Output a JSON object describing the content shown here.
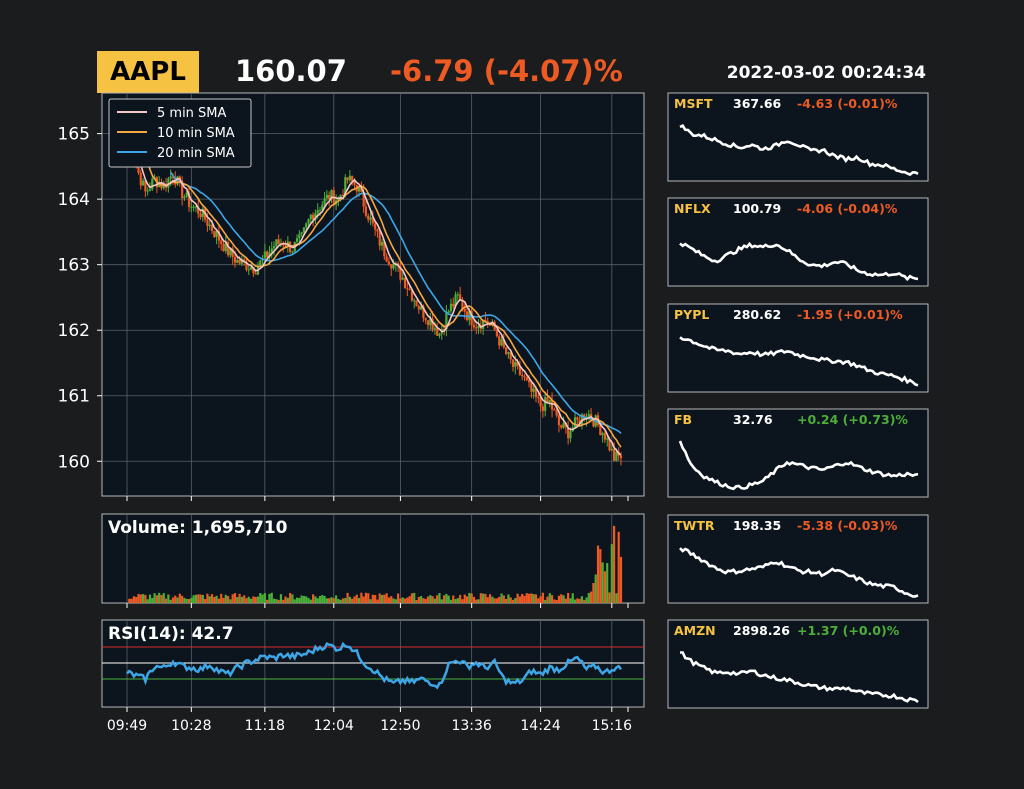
{
  "header": {
    "symbol": "AAPL",
    "price": "160.07",
    "change": "-6.79 (-4.07)%",
    "timestamp": "2022-03-02 00:24:34"
  },
  "colors": {
    "background": "#1a1c1e",
    "panel": "#0c151d",
    "symbol_badge": "#f5c242",
    "up": "#4caf3a",
    "down": "#ee5a24",
    "sma5": "#f7c6c6",
    "sma10": "#f5a742",
    "sma20": "#3ea6e6",
    "rsi_line": "#3ea6e6",
    "rsi_upper": "#d62c2c",
    "rsi_mid": "#ffffff",
    "rsi_lower": "#4caf3a",
    "ticker_symbol": "#f5c242"
  },
  "chart_data": [
    {
      "type": "candlestick",
      "name": "price",
      "legend": [
        "5 min SMA",
        "10 min SMA",
        "20 min SMA"
      ],
      "legend_position": "top-left",
      "grid": true,
      "ylim": [
        159.47,
        165.62
      ],
      "yticks": [
        160,
        161,
        162,
        163,
        164,
        165
      ],
      "x_ticks": [
        "09:49",
        "10:28",
        "11:18",
        "12:04",
        "12:50",
        "13:36",
        "14:24",
        "15:16"
      ],
      "price_path": [
        [
          0,
          165.4
        ],
        [
          4,
          164.5
        ],
        [
          8,
          164.1
        ],
        [
          12,
          164.3
        ],
        [
          16,
          164.2
        ],
        [
          20,
          164.4
        ],
        [
          24,
          164.1
        ],
        [
          28,
          163.9
        ],
        [
          32,
          163.8
        ],
        [
          36,
          163.6
        ],
        [
          40,
          163.4
        ],
        [
          44,
          163.2
        ],
        [
          48,
          163.05
        ],
        [
          52,
          163.0
        ],
        [
          56,
          162.95
        ],
        [
          60,
          163.1
        ],
        [
          64,
          163.3
        ],
        [
          68,
          163.35
        ],
        [
          72,
          163.25
        ],
        [
          76,
          163.4
        ],
        [
          80,
          163.75
        ],
        [
          84,
          163.9
        ],
        [
          88,
          164.05
        ],
        [
          92,
          164.0
        ],
        [
          96,
          164.3
        ],
        [
          100,
          164.2
        ],
        [
          104,
          163.85
        ],
        [
          108,
          163.5
        ],
        [
          112,
          163.2
        ],
        [
          116,
          163.0
        ],
        [
          120,
          162.8
        ],
        [
          124,
          162.55
        ],
        [
          128,
          162.3
        ],
        [
          132,
          162.15
        ],
        [
          136,
          161.95
        ],
        [
          140,
          162.3
        ],
        [
          144,
          162.5
        ],
        [
          148,
          162.25
        ],
        [
          152,
          162.1
        ],
        [
          156,
          162.15
        ],
        [
          160,
          162.0
        ],
        [
          164,
          161.7
        ],
        [
          168,
          161.45
        ],
        [
          172,
          161.3
        ],
        [
          176,
          161.05
        ],
        [
          180,
          160.85
        ],
        [
          184,
          160.9
        ],
        [
          188,
          160.55
        ],
        [
          192,
          160.45
        ],
        [
          196,
          160.6
        ],
        [
          200,
          160.75
        ],
        [
          204,
          160.6
        ],
        [
          208,
          160.4
        ],
        [
          212,
          160.05
        ],
        [
          215,
          160.07
        ]
      ],
      "volume_label": "Volume: 1,695,710",
      "volume_ylim": [
        0,
        30000
      ]
    },
    {
      "type": "line",
      "name": "rsi",
      "label": "RSI(14): 42.7",
      "ylim": [
        0,
        100
      ],
      "reference_lines": [
        70,
        50,
        30
      ],
      "points": [
        [
          0,
          38
        ],
        [
          4,
          34
        ],
        [
          8,
          30
        ],
        [
          12,
          46
        ],
        [
          16,
          44
        ],
        [
          20,
          52
        ],
        [
          24,
          46
        ],
        [
          28,
          44
        ],
        [
          32,
          42
        ],
        [
          36,
          48
        ],
        [
          40,
          40
        ],
        [
          44,
          36
        ],
        [
          48,
          44
        ],
        [
          52,
          50
        ],
        [
          56,
          54
        ],
        [
          60,
          58
        ],
        [
          64,
          56
        ],
        [
          68,
          60
        ],
        [
          72,
          58
        ],
        [
          76,
          60
        ],
        [
          80,
          64
        ],
        [
          84,
          70
        ],
        [
          88,
          72
        ],
        [
          92,
          68
        ],
        [
          96,
          74
        ],
        [
          100,
          62
        ],
        [
          104,
          48
        ],
        [
          108,
          40
        ],
        [
          112,
          30
        ],
        [
          116,
          24
        ],
        [
          120,
          28
        ],
        [
          124,
          26
        ],
        [
          128,
          30
        ],
        [
          132,
          26
        ],
        [
          136,
          22
        ],
        [
          140,
          48
        ],
        [
          144,
          54
        ],
        [
          148,
          46
        ],
        [
          152,
          50
        ],
        [
          156,
          44
        ],
        [
          160,
          50
        ],
        [
          164,
          30
        ],
        [
          168,
          24
        ],
        [
          172,
          28
        ],
        [
          176,
          40
        ],
        [
          180,
          36
        ],
        [
          184,
          44
        ],
        [
          188,
          42
        ],
        [
          192,
          50
        ],
        [
          196,
          56
        ],
        [
          200,
          42
        ],
        [
          204,
          46
        ],
        [
          208,
          38
        ],
        [
          212,
          44
        ],
        [
          215,
          42.7
        ]
      ]
    }
  ],
  "tickers": [
    {
      "symbol": "MSFT",
      "price": "367.66",
      "change": "-4.63 (-0.01)%",
      "direction": "down",
      "trend": [
        1.0,
        0.82,
        0.78,
        0.7,
        0.62,
        0.55,
        0.6,
        0.52,
        0.58,
        0.7,
        0.6,
        0.48,
        0.5,
        0.38,
        0.32,
        0.35,
        0.22,
        0.2,
        0.12,
        0.05,
        0.03
      ]
    },
    {
      "symbol": "NFLX",
      "price": "100.79",
      "change": "-4.06 (-0.04)%",
      "direction": "down",
      "trend": [
        0.75,
        0.62,
        0.48,
        0.38,
        0.5,
        0.62,
        0.7,
        0.66,
        0.72,
        0.6,
        0.42,
        0.3,
        0.28,
        0.36,
        0.32,
        0.18,
        0.12,
        0.1,
        0.14,
        0.04,
        0.03
      ]
    },
    {
      "symbol": "PYPL",
      "price": "280.62",
      "change": "-1.95 (+0.01)%",
      "direction": "down",
      "trend": [
        0.98,
        0.9,
        0.8,
        0.72,
        0.7,
        0.64,
        0.68,
        0.62,
        0.66,
        0.7,
        0.62,
        0.58,
        0.52,
        0.5,
        0.48,
        0.4,
        0.3,
        0.24,
        0.2,
        0.12,
        0.04
      ]
    },
    {
      "symbol": "FB",
      "price": "32.76",
      "change": "+0.24 (+0.73)%",
      "direction": "up",
      "trend": [
        1.0,
        0.5,
        0.3,
        0.18,
        0.1,
        0.06,
        0.12,
        0.2,
        0.4,
        0.58,
        0.52,
        0.46,
        0.42,
        0.5,
        0.58,
        0.48,
        0.4,
        0.34,
        0.3,
        0.34,
        0.3
      ]
    },
    {
      "symbol": "TWTR",
      "price": "198.35",
      "change": "-5.38 (-0.03)%",
      "direction": "down",
      "trend": [
        0.98,
        0.86,
        0.72,
        0.58,
        0.5,
        0.52,
        0.56,
        0.6,
        0.72,
        0.62,
        0.52,
        0.5,
        0.46,
        0.54,
        0.44,
        0.36,
        0.26,
        0.22,
        0.2,
        0.08,
        0.02
      ]
    },
    {
      "symbol": "AMZN",
      "price": "2898.26",
      "change": "+1.37 (+0.0)%",
      "direction": "up",
      "trend": [
        1.0,
        0.8,
        0.68,
        0.58,
        0.6,
        0.56,
        0.62,
        0.54,
        0.48,
        0.44,
        0.38,
        0.32,
        0.28,
        0.26,
        0.28,
        0.2,
        0.16,
        0.14,
        0.12,
        0.06,
        0.02
      ]
    }
  ]
}
